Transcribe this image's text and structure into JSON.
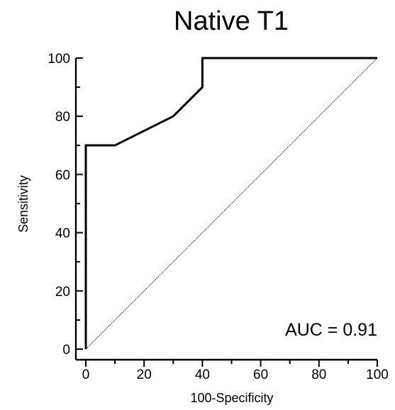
{
  "chart_data": {
    "type": "line",
    "title": "Native T1",
    "xlabel": "100-Specificity",
    "ylabel": "Sensitivity",
    "xlim": [
      0,
      100
    ],
    "ylim": [
      0,
      100
    ],
    "x_ticks": [
      0,
      20,
      40,
      60,
      80,
      100
    ],
    "y_ticks": [
      0,
      20,
      40,
      60,
      80,
      100
    ],
    "series": [
      {
        "x": [
          0,
          0,
          10,
          30,
          40,
          40,
          100
        ],
        "y": [
          0,
          70,
          70,
          80,
          90,
          100,
          100
        ]
      }
    ],
    "reference_line": {
      "x": [
        0,
        100
      ],
      "y": [
        0,
        100
      ],
      "style": "dotted"
    },
    "annotation": "AUC = 0.91",
    "grid": false,
    "colors": {
      "roc_line": "#000000",
      "reference_line": "#000000",
      "axes": "#000000"
    }
  }
}
